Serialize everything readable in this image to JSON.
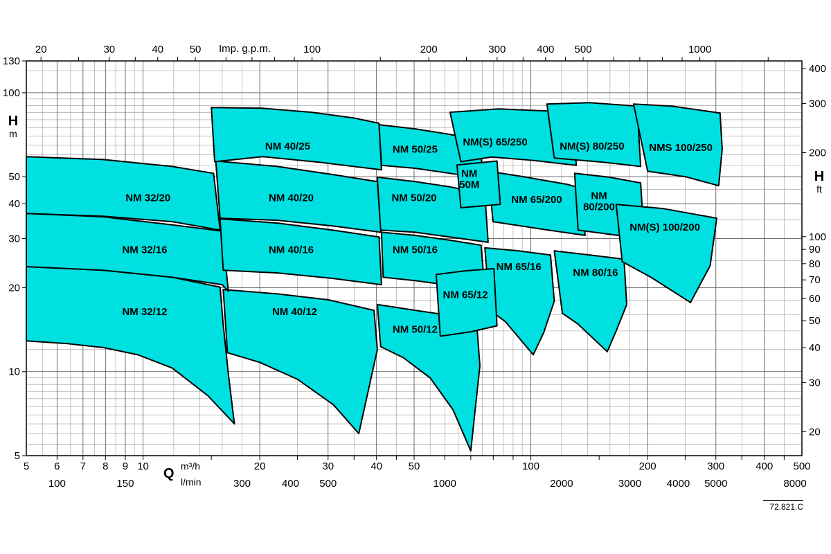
{
  "labels": {
    "top_axis": "Imp. g.p.m.",
    "left_letter": "H",
    "left_unit": "m",
    "right_letter": "H",
    "right_unit": "ft",
    "q_letter": "Q",
    "unit_m3h": "m³/h",
    "unit_lmin": "l/min",
    "doc_number": "72.821.C"
  },
  "chart_data": {
    "type": "area",
    "description": "Pump selection chart: head H versus flow Q operating regions, log-log scales",
    "x_axis": {
      "unit": "m³/h",
      "range": [
        5,
        500
      ],
      "ticks": [
        5,
        6,
        7,
        8,
        9,
        10,
        20,
        30,
        40,
        50,
        100,
        200,
        300,
        400,
        500
      ]
    },
    "x_axis_lmin": {
      "unit": "l/min",
      "ticks": [
        100,
        150,
        300,
        400,
        500,
        1000,
        2000,
        3000,
        4000,
        5000,
        8000
      ],
      "lmin_per_m3h": 16.667
    },
    "x_axis_gpm": {
      "unit": "Imp. g.p.m.",
      "ticks": [
        20,
        30,
        40,
        50,
        100,
        200,
        300,
        400,
        500,
        1000
      ],
      "gpm_per_m3h": 3.666
    },
    "y_axis": {
      "unit": "m",
      "range": [
        5,
        130
      ],
      "ticks": [
        5,
        10,
        20,
        30,
        40,
        50,
        100,
        130
      ]
    },
    "y_axis_ft": {
      "unit": "ft",
      "ticks": [
        20,
        30,
        40,
        50,
        60,
        70,
        80,
        90,
        100,
        200,
        300,
        400
      ],
      "m_per_ft": 0.3048
    },
    "colors": {
      "region_fill": "#00e0e0",
      "region_stroke": "#000000",
      "grid": "#9a9a9a",
      "grid_major": "#555555",
      "axis": "#000000"
    },
    "regions": [
      {
        "name": "NM 32/12",
        "label_lines": [
          "NM 32/12"
        ],
        "label_at": [
          10.1,
          16.4
        ],
        "points": [
          [
            5,
            23.8
          ],
          [
            7.9,
            23.1
          ],
          [
            11.9,
            21.8
          ],
          [
            15.8,
            20.1
          ],
          [
            16.1,
            14.7
          ],
          [
            16.6,
            9.8
          ],
          [
            17.2,
            6.5
          ],
          [
            14.7,
            8.2
          ],
          [
            11.9,
            10.3
          ],
          [
            9.7,
            11.5
          ],
          [
            7.9,
            12.2
          ],
          [
            6.4,
            12.6
          ],
          [
            5,
            12.9
          ]
        ]
      },
      {
        "name": "NM 40/12",
        "label_lines": [
          "NM 40/12"
        ],
        "label_at": [
          24.6,
          16.4
        ],
        "points": [
          [
            16.1,
            19.7
          ],
          [
            22.2,
            19
          ],
          [
            30,
            18.1
          ],
          [
            39.4,
            16.6
          ],
          [
            40.2,
            12
          ],
          [
            36,
            6
          ],
          [
            31,
            7.6
          ],
          [
            25,
            9.4
          ],
          [
            20,
            10.8
          ],
          [
            16.5,
            11.7
          ]
        ]
      },
      {
        "name": "NM 50/12",
        "label_lines": [
          "NM 50/12"
        ],
        "label_at": [
          50.3,
          14.2
        ],
        "points": [
          [
            40.2,
            17.4
          ],
          [
            50.3,
            16.6
          ],
          [
            61.9,
            15.9
          ],
          [
            72.4,
            15.3
          ],
          [
            73.9,
            10.5
          ],
          [
            70,
            5.2
          ],
          [
            63,
            7.3
          ],
          [
            55,
            9.5
          ],
          [
            47,
            11.2
          ],
          [
            41,
            12.3
          ]
        ]
      },
      {
        "name": "NM 32/16",
        "label_lines": [
          "NM 32/16"
        ],
        "label_at": [
          10.1,
          27.4
        ],
        "points": [
          [
            5,
            36.9
          ],
          [
            7.9,
            35.9
          ],
          [
            11.9,
            33.6
          ],
          [
            16,
            31.9
          ],
          [
            16.6,
            19.4
          ],
          [
            16,
            20.5
          ],
          [
            11.9,
            21.8
          ],
          [
            7.9,
            23.1
          ],
          [
            5,
            23.8
          ]
        ]
      },
      {
        "name": "NM 40/16",
        "label_lines": [
          "NM 40/16"
        ],
        "label_at": [
          24.1,
          27.4
        ],
        "points": [
          [
            15.8,
            35.3
          ],
          [
            22.2,
            34.1
          ],
          [
            30.8,
            32.2
          ],
          [
            40.6,
            30.4
          ],
          [
            41.2,
            20.5
          ],
          [
            30.8,
            21.6
          ],
          [
            22.2,
            22.6
          ],
          [
            16.1,
            23.1
          ]
        ]
      },
      {
        "name": "NM 50/16",
        "label_lines": [
          "NM 50/16"
        ],
        "label_at": [
          50.3,
          27.4
        ],
        "points": [
          [
            41.2,
            31.6
          ],
          [
            50.3,
            30.8
          ],
          [
            61.9,
            29.6
          ],
          [
            74.4,
            28.4
          ],
          [
            76.1,
            19.5
          ],
          [
            61.9,
            20.4
          ],
          [
            50.3,
            21.2
          ],
          [
            41.6,
            21.8
          ]
        ]
      },
      {
        "name": "NM 65/16",
        "label_lines": [
          "NM 65/16"
        ],
        "label_at": [
          93.1,
          23.8
        ],
        "points": [
          [
            76.1,
            27.8
          ],
          [
            93.1,
            27.1
          ],
          [
            112.4,
            26.2
          ],
          [
            114.9,
            17.9
          ],
          [
            107.9,
            13.8
          ],
          [
            101.4,
            11.5
          ],
          [
            86,
            15.1
          ],
          [
            78.4,
            16.6
          ]
        ]
      },
      {
        "name": "NM 80/16",
        "label_lines": [
          "NM 80/16"
        ],
        "label_at": [
          146.8,
          22.7
        ],
        "points": [
          [
            114.9,
            27.1
          ],
          [
            141.9,
            26.2
          ],
          [
            173.9,
            25.3
          ],
          [
            176.7,
            17.4
          ],
          [
            166,
            14
          ],
          [
            157.4,
            11.8
          ],
          [
            132.4,
            14.8
          ],
          [
            120.6,
            16.2
          ]
        ]
      },
      {
        "name": "NM 65/12",
        "label_lines": [
          "NM 65/12"
        ],
        "label_at": [
          67.8,
          18.9
        ],
        "points": [
          [
            57,
            22.3
          ],
          [
            68,
            23
          ],
          [
            80.3,
            23.4
          ],
          [
            81.8,
            14.6
          ],
          [
            70,
            13.9
          ],
          [
            58.4,
            13.4
          ]
        ]
      },
      {
        "name": "NM 32/20",
        "label_lines": [
          "NM 32/20"
        ],
        "label_at": [
          10.3,
          42
        ],
        "points": [
          [
            5,
            59
          ],
          [
            7.9,
            57.6
          ],
          [
            11.9,
            54.4
          ],
          [
            15.2,
            51.4
          ],
          [
            15.8,
            32.2
          ],
          [
            11.9,
            34.5
          ],
          [
            7.9,
            36.1
          ],
          [
            5,
            36.9
          ]
        ]
      },
      {
        "name": "NM 40/20",
        "label_lines": [
          "NM 40/20"
        ],
        "label_at": [
          24.1,
          42.1
        ],
        "points": [
          [
            15.4,
            56.9
          ],
          [
            22.2,
            54.4
          ],
          [
            30.8,
            50.9
          ],
          [
            40.2,
            48
          ],
          [
            41.1,
            31.6
          ],
          [
            30.8,
            33.3
          ],
          [
            22.2,
            34.9
          ],
          [
            15.8,
            35.5
          ]
        ]
      },
      {
        "name": "NM 50/20",
        "label_lines": [
          "NM 50/20"
        ],
        "label_at": [
          50,
          42.1
        ],
        "points": [
          [
            40.2,
            49.8
          ],
          [
            50.3,
            48
          ],
          [
            61.9,
            46
          ],
          [
            76.1,
            43.3
          ],
          [
            77.6,
            29.1
          ],
          [
            61.9,
            30.4
          ],
          [
            50.3,
            31.6
          ],
          [
            41,
            32.2
          ]
        ]
      },
      {
        "name": "NM 65/200",
        "label_lines": [
          "NM 65/200"
        ],
        "label_at": [
          103.5,
          41.4
        ],
        "points": [
          [
            77.6,
            52.3
          ],
          [
            97.4,
            49.8
          ],
          [
            124.6,
            46.9
          ],
          [
            135.2,
            45.4
          ],
          [
            138,
            30.8
          ],
          [
            105.6,
            32.5
          ],
          [
            79.9,
            34.5
          ]
        ]
      },
      {
        "name": "NM 80/200",
        "label_lines": [
          "NM",
          "80/200"
        ],
        "label_at": [
          149.9,
          40.9
        ],
        "points": [
          [
            129.7,
            51.4
          ],
          [
            159.4,
            49.8
          ],
          [
            191.9,
            47.5
          ],
          [
            195.9,
            29.9
          ],
          [
            159.4,
            31.1
          ],
          [
            132.4,
            32.2
          ]
        ]
      },
      {
        "name": "NM(S) 100/200",
        "label_lines": [
          "NM(S) 100/200"
        ],
        "label_at": [
          221.6,
          33
        ],
        "points": [
          [
            166,
            39.8
          ],
          [
            220,
            38.4
          ],
          [
            301.5,
            35.5
          ],
          [
            290,
            24
          ],
          [
            258,
            17.7
          ],
          [
            204,
            21.8
          ],
          [
            172,
            24.8
          ]
        ]
      },
      {
        "name": "NM 40/25",
        "label_lines": [
          "NM 40/25"
        ],
        "label_at": [
          23.6,
          64.3
        ],
        "points": [
          [
            15,
            88.5
          ],
          [
            20.3,
            88
          ],
          [
            27.2,
            85.1
          ],
          [
            34.9,
            81.2
          ],
          [
            40.6,
            77.7
          ],
          [
            41.2,
            52.9
          ],
          [
            28.3,
            56.4
          ],
          [
            20.3,
            59
          ],
          [
            15.3,
            56.6
          ]
        ]
      },
      {
        "name": "NM 50/25",
        "label_lines": [
          "NM 50/25"
        ],
        "label_at": [
          50.3,
          62.8
        ],
        "points": [
          [
            40.6,
            76.8
          ],
          [
            50.3,
            74.2
          ],
          [
            61.9,
            70.9
          ],
          [
            73.9,
            67.7
          ],
          [
            75.2,
            49.2
          ],
          [
            61.9,
            51.4
          ],
          [
            50.3,
            53.6
          ],
          [
            41.2,
            54.9
          ]
        ]
      },
      {
        "name": "NM(S) 65/250",
        "label_lines": [
          "NM(S) 65/250"
        ],
        "label_at": [
          80.9,
          66.6
        ],
        "points": [
          [
            61.9,
            85.1
          ],
          [
            82.6,
            87.5
          ],
          [
            110,
            86
          ],
          [
            128.8,
            83.6
          ],
          [
            130.9,
            54.9
          ],
          [
            101.4,
            57.2
          ],
          [
            79.2,
            58.8
          ],
          [
            66,
            56.6
          ]
        ]
      },
      {
        "name": "NM 50M",
        "label_lines": [
          "NM",
          "50M"
        ],
        "label_at": [
          69.4,
          49
        ],
        "points": [
          [
            64.5,
            55.1
          ],
          [
            81.8,
            56.9
          ],
          [
            83.4,
            39.8
          ],
          [
            66,
            38.7
          ]
        ]
      },
      {
        "name": "NM(S) 80/250",
        "label_lines": [
          "NM(S) 80/250"
        ],
        "label_at": [
          143.8,
          64.3
        ],
        "points": [
          [
            110,
            91.1
          ],
          [
            141.9,
            92.1
          ],
          [
            188,
            89.5
          ],
          [
            191.9,
            54.4
          ],
          [
            153,
            56.4
          ],
          [
            114.9,
            58.3
          ]
        ]
      },
      {
        "name": "NMS 100/250",
        "label_lines": [
          "NMS 100/250"
        ],
        "label_at": [
          243.6,
          63.6
        ],
        "points": [
          [
            184,
            91.1
          ],
          [
            231,
            89.5
          ],
          [
            307.6,
            84.6
          ],
          [
            311.5,
            62.8
          ],
          [
            305,
            46.4
          ],
          [
            250.6,
            50
          ],
          [
            200,
            52.3
          ]
        ]
      }
    ]
  }
}
